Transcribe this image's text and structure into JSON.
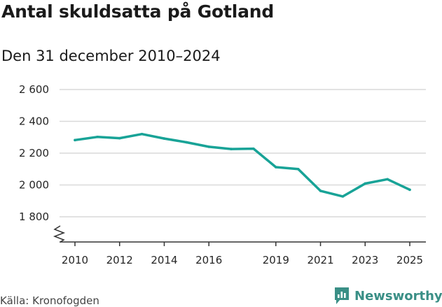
{
  "header": {
    "title": "Antal skuldsatta på Gotland",
    "subtitle": "Den 31 december 2010–2024"
  },
  "footer": {
    "source": "Källa: Kronofogden",
    "brand": "Newsworthy"
  },
  "colors": {
    "line": "#18a397",
    "grid": "#d9d9d9",
    "brand": "#3a8f86"
  },
  "chart_data": {
    "type": "line",
    "title": "Antal skuldsatta på Gotland",
    "subtitle": "Den 31 december 2010–2024",
    "xlabel": "",
    "ylabel": "",
    "ylim": [
      1700,
      2600
    ],
    "xlim": [
      2010,
      2025
    ],
    "grid": true,
    "y_axis_break": true,
    "yticks": [
      1800,
      2000,
      2200,
      2400,
      2600
    ],
    "ytick_labels": [
      "1 800",
      "2 000",
      "2 200",
      "2 400",
      "2 600"
    ],
    "xticks": [
      2010,
      2012,
      2014,
      2016,
      2019,
      2021,
      2023,
      2025
    ],
    "xtick_labels": [
      "2010",
      "2012",
      "2014",
      "2016",
      "2019",
      "2021",
      "2023",
      "2025"
    ],
    "series": [
      {
        "name": "Antal skuldsatta",
        "x": [
          2010,
          2011,
          2012,
          2013,
          2014,
          2015,
          2016,
          2017,
          2018,
          2019,
          2020,
          2021,
          2022,
          2023,
          2024,
          2025
        ],
        "values": [
          2282,
          2302,
          2294,
          2320,
          2292,
          2268,
          2240,
          2226,
          2228,
          2112,
          2100,
          1963,
          1928,
          2009,
          2036,
          1970
        ]
      }
    ]
  }
}
